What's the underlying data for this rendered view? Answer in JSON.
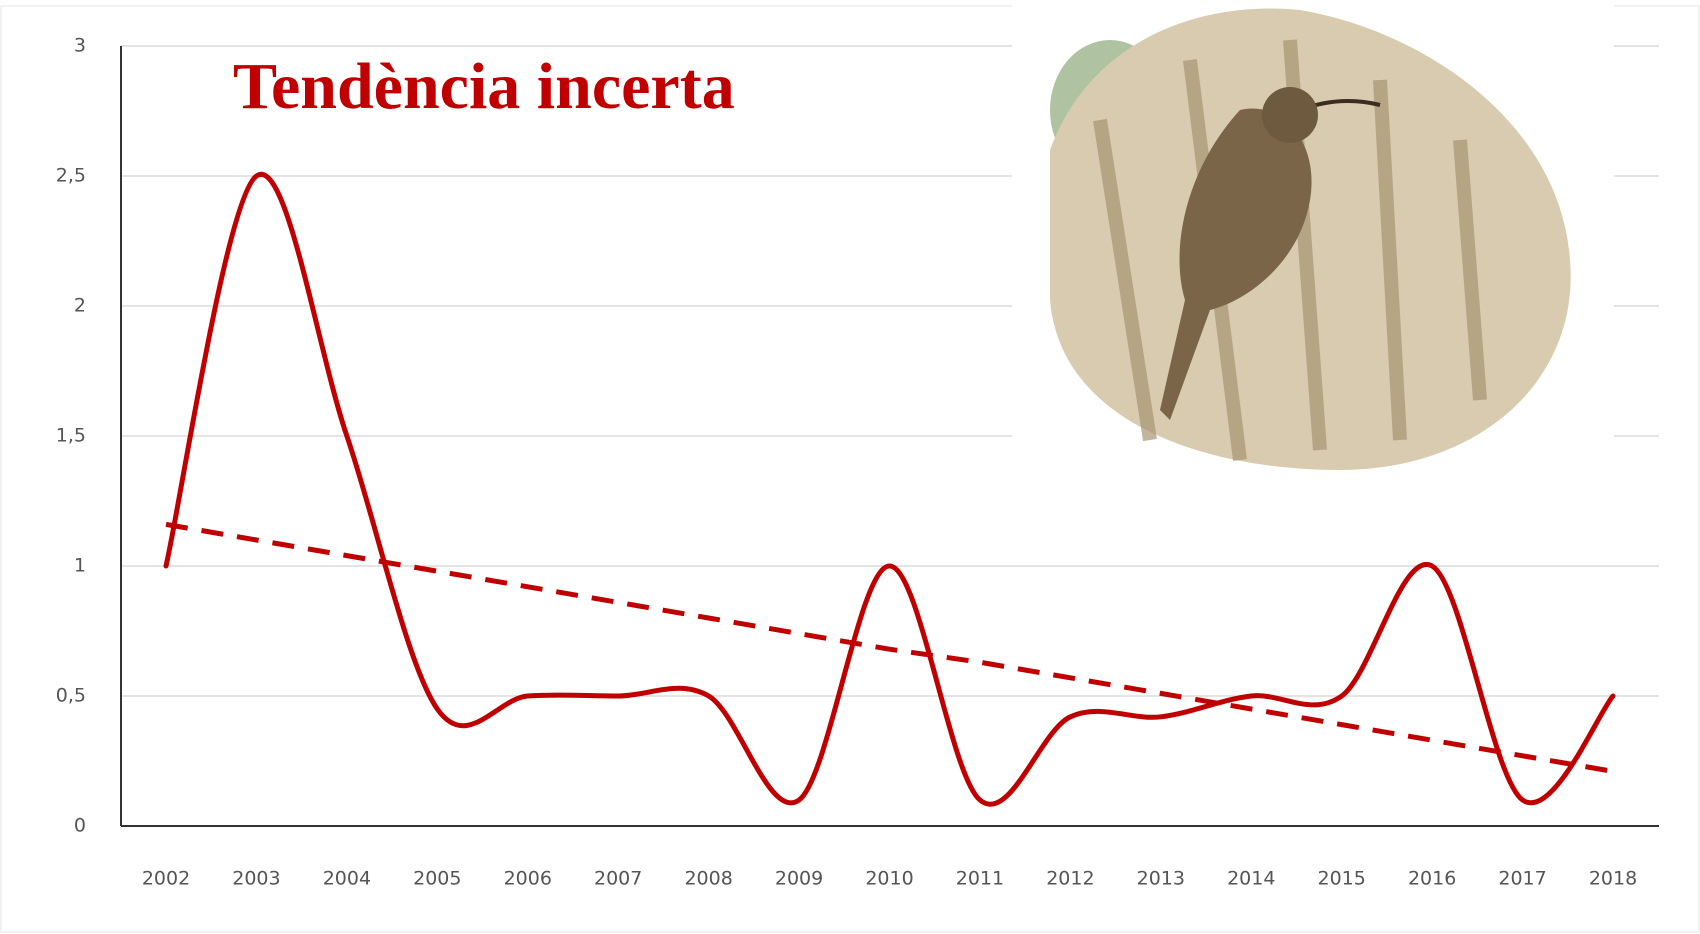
{
  "chart_data": {
    "type": "line",
    "title": "Tendència incerta",
    "categories": [
      "2002",
      "2003",
      "2004",
      "2005",
      "2006",
      "2007",
      "2008",
      "2009",
      "2010",
      "2011",
      "2012",
      "2013",
      "2014",
      "2015",
      "2016",
      "2017",
      "2018"
    ],
    "series": [
      {
        "color": "#c00000",
        "style": "solid",
        "values": [
          1,
          2.5,
          1.5,
          0.45,
          0.5,
          0.5,
          0.5,
          0.1,
          1,
          0.1,
          0.42,
          0.42,
          0.5,
          0.5,
          1,
          0.1,
          0.5
        ]
      },
      {
        "color": "#c00000",
        "style": "dashed",
        "values": [
          1.16,
          1.1,
          1.04,
          0.98,
          0.92,
          0.86,
          0.8,
          0.74,
          0.68,
          0.63,
          0.57,
          0.51,
          0.45,
          0.39,
          0.33,
          0.27,
          0.21
        ]
      }
    ],
    "ylim": [
      0,
      3
    ],
    "yticks": [
      0,
      {
        "value": 0.5,
        "label": "0,5"
      },
      1,
      {
        "value": 1.5,
        "label": "1,5"
      },
      2,
      {
        "value": 2.5,
        "label": "2,5"
      },
      3
    ],
    "grid": true
  }
}
